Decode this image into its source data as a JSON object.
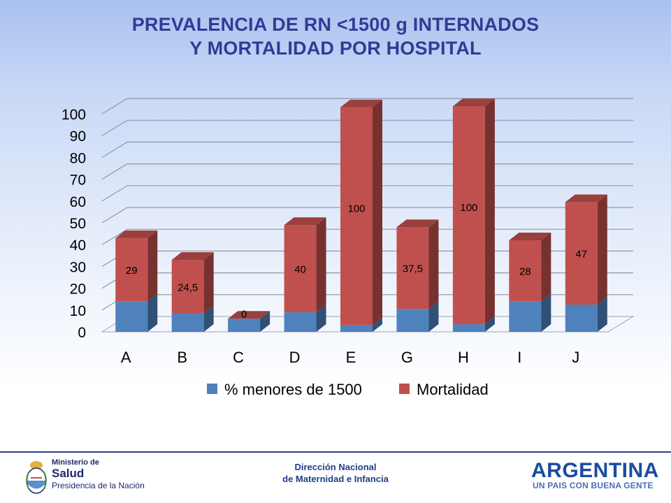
{
  "title": {
    "line1": "PREVALENCIA DE  RN <1500 g INTERNADOS",
    "line2": "Y MORTALIDAD POR HOSPITAL"
  },
  "chart_data": {
    "type": "bar",
    "stacked": true,
    "three_d": true,
    "categories": [
      "A",
      "B",
      "C",
      "D",
      "E",
      "G",
      "H",
      "I",
      "J"
    ],
    "series": [
      {
        "name": "% menores de 1500",
        "color": "#4f81bd",
        "values": [
          14,
          8.5,
          6,
          9,
          3,
          10.5,
          3.5,
          14,
          12.5
        ]
      },
      {
        "name": "Mortalidad",
        "color": "#c0504d",
        "values": [
          29,
          24.5,
          0,
          40,
          100,
          37.5,
          100,
          28,
          47
        ]
      }
    ],
    "data_labels": [
      "29",
      "24,5",
      "0",
      "40",
      "100",
      "37,5",
      "100",
      "28",
      "47"
    ],
    "y_ticks": [
      "0",
      "10",
      "20",
      "30",
      "40",
      "50",
      "60",
      "70",
      "80",
      "90",
      "100"
    ],
    "ylim": [
      0,
      100
    ],
    "grid": true,
    "legend_position": "bottom"
  },
  "footer": {
    "center_line1": "Dirección Nacional",
    "center_line2": "de Maternidad e Infancia",
    "ministry_line1": "Ministerio de",
    "ministry_line2": "Salud",
    "ministry_line3": "Presidencia de la Nación",
    "argentina": "ARGENTINA",
    "slogan": "UN PAIS CON BUENA GENTE"
  }
}
